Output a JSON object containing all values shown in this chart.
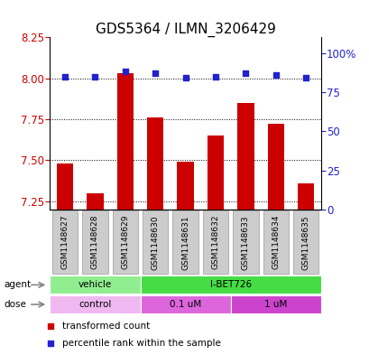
{
  "title": "GDS5364 / ILMN_3206429",
  "samples": [
    "GSM1148627",
    "GSM1148628",
    "GSM1148629",
    "GSM1148630",
    "GSM1148631",
    "GSM1148632",
    "GSM1148633",
    "GSM1148634",
    "GSM1148635"
  ],
  "bar_values": [
    7.48,
    7.3,
    8.03,
    7.76,
    7.49,
    7.65,
    7.85,
    7.72,
    7.36
  ],
  "dot_values": [
    85,
    85,
    88,
    87,
    84,
    85,
    87,
    86,
    84
  ],
  "ymin": 7.2,
  "ymax": 8.25,
  "yticks": [
    7.25,
    7.5,
    7.75,
    8.0,
    8.25
  ],
  "y2min": 0,
  "y2max": 110,
  "y2ticks": [
    0,
    25,
    50,
    75,
    100
  ],
  "bar_color": "#cc0000",
  "dot_color": "#2222cc",
  "agent_colors": [
    "#90ee90",
    "#44dd44"
  ],
  "dose_colors": [
    "#f0b8f0",
    "#dd66dd",
    "#cc44cc"
  ],
  "legend_red": "transformed count",
  "legend_blue": "percentile rank within the sample",
  "title_fontsize": 11,
  "tick_fontsize": 8.5,
  "sample_label_fontsize": 6.5,
  "grey_box_color": "#cccccc",
  "grey_box_edge": "#999999"
}
